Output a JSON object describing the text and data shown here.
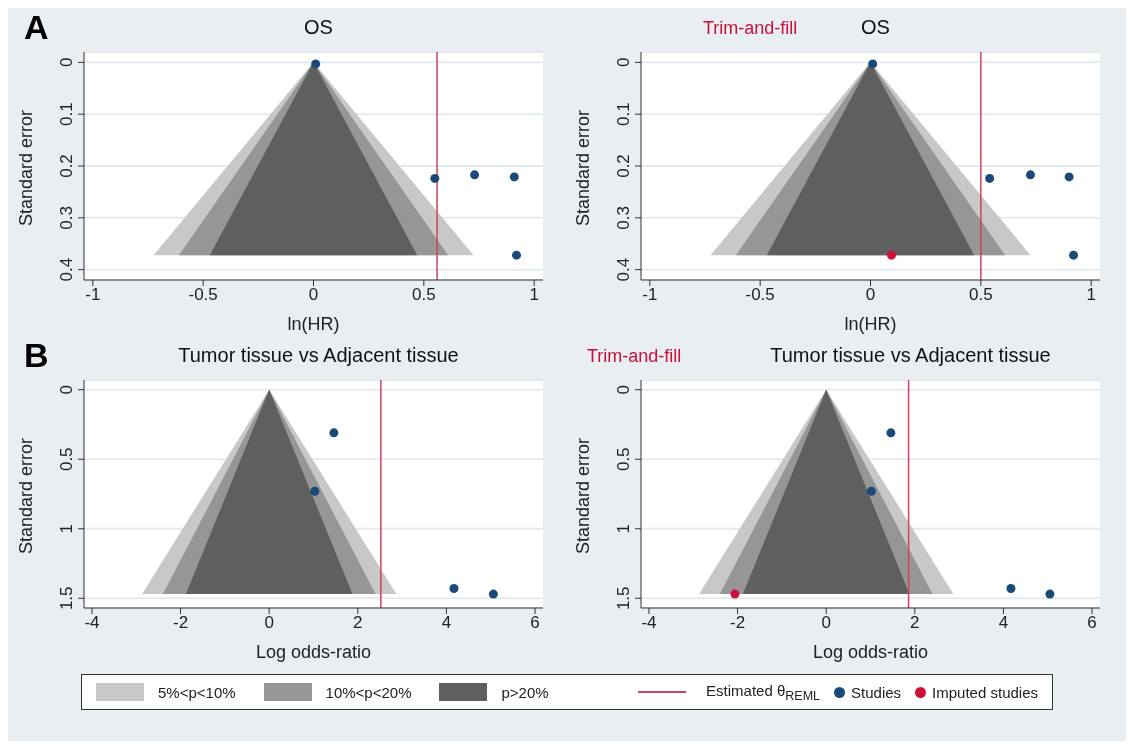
{
  "chart_data": [
    {
      "type": "scatter",
      "title": "OS",
      "annotations": [
        "A"
      ],
      "xlabel": "ln(HR)",
      "ylabel": "Standard error",
      "xlim": [
        -1.04,
        1.04
      ],
      "xticks": [
        -1,
        -0.5,
        0,
        0.5,
        1
      ],
      "ylim": [
        0.42,
        -0.02
      ],
      "yticks": [
        0,
        0.1,
        0.2,
        0.3,
        0.4
      ],
      "grid": "y",
      "series": [
        {
          "type": "area",
          "color": "#c8c8c8",
          "x": [
            -0.725,
            0,
            0.725
          ],
          "values": [
            0.372,
            0,
            0.372
          ]
        },
        {
          "type": "area",
          "color": "#969696",
          "x": [
            -0.61,
            0,
            0.61
          ],
          "values": [
            0.372,
            0,
            0.372
          ]
        },
        {
          "type": "area",
          "color": "#5f5f5f",
          "x": [
            -0.47,
            0,
            0.47
          ],
          "values": [
            0.372,
            0,
            0.372
          ]
        },
        {
          "marker": "circle",
          "color": "#1a4a7a",
          "x": [
            0.01,
            0.55,
            0.73,
            0.91,
            0.92
          ],
          "values": [
            0.003,
            0.224,
            0.217,
            0.221,
            0.372
          ]
        }
      ],
      "ref_lines": [
        {
          "axis": "x",
          "value": 0.56,
          "color": "#d04060"
        }
      ]
    },
    {
      "type": "scatter",
      "title": "OS",
      "annotations": [
        "Trim-and-fill"
      ],
      "xlabel": "ln(HR)",
      "ylabel": "Standard error",
      "xlim": [
        -1.04,
        1.04
      ],
      "xticks": [
        -1,
        -0.5,
        0,
        0.5,
        1
      ],
      "ylim": [
        0.42,
        -0.02
      ],
      "yticks": [
        0,
        0.1,
        0.2,
        0.3,
        0.4
      ],
      "grid": "y",
      "legend": "bottom",
      "series": [
        {
          "type": "area",
          "name": "5%<p<10%",
          "color": "#c8c8c8",
          "x": [
            -0.725,
            0,
            0.725
          ],
          "values": [
            0.372,
            0,
            0.372
          ]
        },
        {
          "type": "area",
          "name": "10%<p<20%",
          "color": "#969696",
          "x": [
            -0.61,
            0,
            0.61
          ],
          "values": [
            0.372,
            0,
            0.372
          ]
        },
        {
          "type": "area",
          "name": "p>20%",
          "color": "#5f5f5f",
          "x": [
            -0.47,
            0,
            0.47
          ],
          "values": [
            0.372,
            0,
            0.372
          ]
        },
        {
          "marker": "circle",
          "name": "Studies",
          "color": "#1a4a7a",
          "x": [
            0.01,
            0.54,
            0.725,
            0.9,
            0.92
          ],
          "values": [
            0.003,
            0.224,
            0.217,
            0.221,
            0.372
          ]
        },
        {
          "marker": "circle",
          "name": "Imputed studies",
          "color": "#d0103a",
          "x": [
            0.095
          ],
          "values": [
            0.372
          ]
        }
      ],
      "ref_lines": [
        {
          "axis": "x",
          "value": 0.5,
          "label": "Estimated θ$_{REML}$",
          "color": "#d04060"
        }
      ]
    },
    {
      "type": "scatter",
      "title": "Tumor tissue vs Adjacent tissue",
      "annotations": [
        "B"
      ],
      "xlabel": "Log odds-ratio",
      "ylabel": "Standard error",
      "xlim": [
        -4.18,
        6.18
      ],
      "xticks": [
        -4,
        -2,
        0,
        2,
        4,
        6
      ],
      "ylim": [
        1.57,
        -0.07
      ],
      "yticks": [
        0,
        0.5,
        1,
        1.5
      ],
      "grid": "y",
      "series": [
        {
          "type": "area",
          "color": "#c8c8c8",
          "x": [
            -2.87,
            0,
            2.87
          ],
          "values": [
            1.47,
            0,
            1.47
          ]
        },
        {
          "type": "area",
          "color": "#969696",
          "x": [
            -2.4,
            0,
            2.4
          ],
          "values": [
            1.47,
            0,
            1.47
          ]
        },
        {
          "type": "area",
          "color": "#5f5f5f",
          "x": [
            -1.88,
            0,
            1.88
          ],
          "values": [
            1.47,
            0,
            1.47
          ]
        },
        {
          "marker": "circle",
          "color": "#1a4a7a",
          "x": [
            1.46,
            1.03,
            4.17,
            5.06
          ],
          "values": [
            0.31,
            0.73,
            1.43,
            1.47
          ]
        }
      ],
      "ref_lines": [
        {
          "axis": "x",
          "value": 2.52,
          "color": "#d04060"
        }
      ]
    },
    {
      "type": "scatter",
      "title": "Tumor tissue vs Adjacent tissue",
      "annotations": [
        "Trim-and-fill"
      ],
      "xlabel": "Log odds-ratio",
      "ylabel": "Standard error",
      "xlim": [
        -4.18,
        6.18
      ],
      "xticks": [
        -4,
        -2,
        0,
        2,
        4,
        6
      ],
      "ylim": [
        1.57,
        -0.07
      ],
      "yticks": [
        0,
        0.5,
        1,
        1.5
      ],
      "grid": "y",
      "series": [
        {
          "type": "area",
          "color": "#c8c8c8",
          "x": [
            -2.87,
            0,
            2.87
          ],
          "values": [
            1.47,
            0,
            1.47
          ]
        },
        {
          "type": "area",
          "color": "#969696",
          "x": [
            -2.4,
            0,
            2.4
          ],
          "values": [
            1.47,
            0,
            1.47
          ]
        },
        {
          "type": "area",
          "color": "#5f5f5f",
          "x": [
            -1.88,
            0,
            1.88
          ],
          "values": [
            1.47,
            0,
            1.47
          ]
        },
        {
          "marker": "circle",
          "color": "#1a4a7a",
          "x": [
            1.46,
            1.02,
            4.17,
            5.05
          ],
          "values": [
            0.31,
            0.73,
            1.43,
            1.47
          ]
        },
        {
          "marker": "circle",
          "color": "#d0103a",
          "x": [
            -2.06
          ],
          "values": [
            1.47
          ]
        }
      ],
      "ref_lines": [
        {
          "axis": "x",
          "value": 1.86,
          "color": "#d04060"
        }
      ]
    }
  ]
}
